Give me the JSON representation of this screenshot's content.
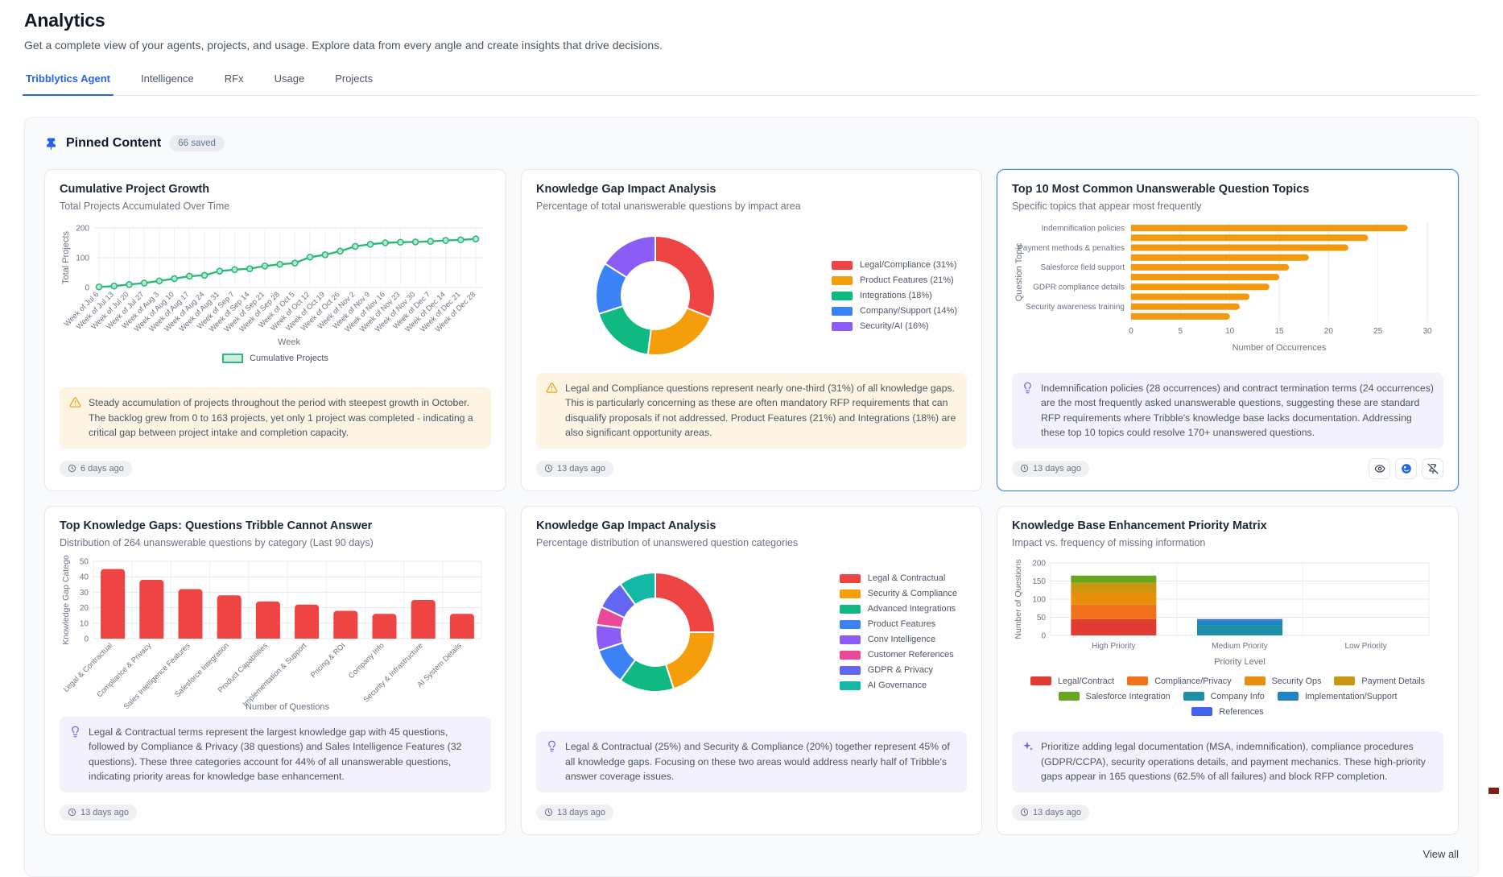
{
  "page": {
    "title": "Analytics",
    "subtitle": "Get a complete view of your agents, projects, and usage. Explore data from every angle and create insights that drive decisions."
  },
  "tabs": [
    {
      "label": "Tribblytics Agent",
      "active": true
    },
    {
      "label": "Intelligence",
      "active": false
    },
    {
      "label": "RFx",
      "active": false
    },
    {
      "label": "Usage",
      "active": false
    },
    {
      "label": "Projects",
      "active": false
    }
  ],
  "pinned": {
    "title": "Pinned Content",
    "badge": "66 saved",
    "view_all": "View all"
  },
  "cards": [
    {
      "title": "Cumulative Project Growth",
      "subtitle": "Total Projects Accumulated Over Time",
      "insight": "Steady accumulation of projects throughout the period with steepest growth in October. The backlog grew from 0 to 163 projects, yet only 1 project was completed - indicating a critical gap between project intake and completion capacity.",
      "timestamp": "6 days ago"
    },
    {
      "title": "Knowledge Gap Impact Analysis",
      "subtitle": "Percentage of total unanswerable questions by impact area",
      "insight": "Legal and Compliance questions represent nearly one-third (31%) of all knowledge gaps. This is particularly concerning as these are often mandatory RFP requirements that can disqualify proposals if not addressed. Product Features (21%) and Integrations (18%) are also significant opportunity areas.",
      "timestamp": "13 days ago"
    },
    {
      "title": "Top 10 Most Common Unanswerable Question Topics",
      "subtitle": "Specific topics that appear most frequently",
      "insight": "Indemnification policies (28 occurrences) and contract termination terms (24 occurrences) are the most frequently asked unanswerable questions, suggesting these are standard RFP requirements where Tribble's knowledge base lacks documentation. Addressing these top 10 topics could resolve 170+ unanswered questions.",
      "timestamp": "13 days ago"
    },
    {
      "title": "Top Knowledge Gaps: Questions Tribble Cannot Answer",
      "subtitle": "Distribution of 264 unanswerable questions by category (Last 90 days)",
      "insight": "Legal & Contractual terms represent the largest knowledge gap with 45 questions, followed by Compliance & Privacy (38 questions) and Sales Intelligence Features (32 questions). These three categories account for 44% of all unanswerable questions, indicating priority areas for knowledge base enhancement.",
      "timestamp": "13 days ago"
    },
    {
      "title": "Knowledge Gap Impact Analysis",
      "subtitle": "Percentage distribution of unanswered question categories",
      "insight": "Legal & Contractual (25%) and Security & Compliance (20%) together represent 45% of all knowledge gaps. Focusing on these two areas would address nearly half of Tribble's answer coverage issues.",
      "timestamp": "13 days ago"
    },
    {
      "title": "Knowledge Base Enhancement Priority Matrix",
      "subtitle": "Impact vs. frequency of missing information",
      "insight": "Prioritize adding legal documentation (MSA, indemnification), compliance procedures (GDPR/CCPA), security operations details, and payment mechanics. These high-priority gaps appear in 165 questions (62.5% of all failures) and block RFP completion.",
      "timestamp": "13 days ago"
    }
  ],
  "chart_data": [
    {
      "type": "line",
      "title": "Cumulative Project Growth",
      "xlabel": "Week",
      "ylabel": "Total Projects",
      "ylim": [
        0,
        200
      ],
      "yticks": [
        0,
        100,
        200
      ],
      "line_color": "#2eb77d",
      "legend": [
        {
          "label": "Cumulative Projects",
          "color": "#2eb77d"
        }
      ],
      "x": [
        "Week of Jul 6",
        "Week of Jul 13",
        "Week of Jul 20",
        "Week of Jul 27",
        "Week of Aug 3",
        "Week of Aug 10",
        "Week of Aug 17",
        "Week of Aug 24",
        "Week of Aug 31",
        "Week of Sep 7",
        "Week of Sep 14",
        "Week of Sep 21",
        "Week of Sep 28",
        "Week of Oct 5",
        "Week of Oct 12",
        "Week of Oct 19",
        "Week of Oct 26",
        "Week of Nov 2",
        "Week of Nov 9",
        "Week of Nov 16",
        "Week of Nov 23",
        "Week of Nov 30",
        "Week of Dec 7",
        "Week of Dec 14",
        "Week of Dec 21",
        "Week of Dec 28"
      ],
      "values": [
        2,
        5,
        10,
        15,
        22,
        30,
        38,
        41,
        55,
        60,
        63,
        72,
        78,
        82,
        102,
        110,
        122,
        138,
        145,
        150,
        152,
        153,
        155,
        158,
        160,
        163
      ]
    },
    {
      "type": "pie",
      "donut": true,
      "legend_position": "right",
      "slices": [
        {
          "label": "Legal/Compliance (31%)",
          "value": 31,
          "color": "#ef4444"
        },
        {
          "label": "Product Features (21%)",
          "value": 21,
          "color": "#f59e0b"
        },
        {
          "label": "Integrations (18%)",
          "value": 18,
          "color": "#10b981"
        },
        {
          "label": "Company/Support (14%)",
          "value": 14,
          "color": "#3b82f6"
        },
        {
          "label": "Security/AI (16%)",
          "value": 16,
          "color": "#8b5cf6"
        }
      ]
    },
    {
      "type": "bar",
      "orientation": "horizontal",
      "xlabel": "Number of Occurrences",
      "ylabel": "Question Topic",
      "xlim": [
        0,
        30
      ],
      "xticks": [
        0,
        5,
        10,
        15,
        20,
        25,
        30
      ],
      "bar_color": "#f2990d",
      "categories": [
        "Indemnification policies",
        "",
        "Payment methods & penalties",
        "",
        "Salesforce field support",
        "",
        "GDPR compliance details",
        "",
        "Security awareness training",
        ""
      ],
      "values": [
        28,
        24,
        22,
        18,
        16,
        15,
        14,
        12,
        11,
        10
      ]
    },
    {
      "type": "bar",
      "orientation": "vertical",
      "xlabel": "Number of Questions",
      "ylabel": "Knowledge Gap Catego",
      "ylim": [
        0,
        50
      ],
      "yticks": [
        0,
        10,
        20,
        30,
        40,
        50
      ],
      "bar_color": "#ee4444",
      "categories": [
        "Legal & Contractual",
        "Compliance & Privacy",
        "Sales Intelligence Features",
        "Salesforce Integration",
        "Product Capabilities",
        "Implementation & Support",
        "Pricing & ROI",
        "Company Info",
        "Security & Infrastructure",
        "AI System Details"
      ],
      "values": [
        45,
        38,
        32,
        28,
        24,
        22,
        18,
        16,
        25,
        16
      ]
    },
    {
      "type": "pie",
      "donut": true,
      "legend_position": "right",
      "slices": [
        {
          "label": "Legal & Contractual",
          "value": 25,
          "color": "#ef4444"
        },
        {
          "label": "Security & Compliance",
          "value": 20,
          "color": "#f59e0b"
        },
        {
          "label": "Advanced Integrations",
          "value": 15,
          "color": "#10b981"
        },
        {
          "label": "Product Features",
          "value": 10,
          "color": "#3b82f6"
        },
        {
          "label": "Conv Intelligence",
          "value": 7,
          "color": "#8b5cf6"
        },
        {
          "label": "Customer References",
          "value": 5,
          "color": "#ec4899"
        },
        {
          "label": "GDPR & Privacy",
          "value": 8,
          "color": "#6366f1"
        },
        {
          "label": "AI Governance",
          "value": 10,
          "color": "#14b8a6"
        }
      ]
    },
    {
      "type": "bar",
      "orientation": "vertical-stacked",
      "xlabel": "Priority Level",
      "ylabel": "Number of Questions",
      "ylim": [
        0,
        200
      ],
      "yticks": [
        0,
        50,
        100,
        150,
        200
      ],
      "categories": [
        "High Priority",
        "Medium Priority",
        "Low Priority"
      ],
      "series": [
        {
          "name": "Legal/Contract",
          "color": "#e03c32",
          "values": [
            45,
            0,
            0
          ]
        },
        {
          "name": "Compliance/Privacy",
          "color": "#f2711c",
          "values": [
            40,
            0,
            0
          ]
        },
        {
          "name": "Security Ops",
          "color": "#e8900c",
          "values": [
            35,
            0,
            0
          ]
        },
        {
          "name": "Payment Details",
          "color": "#c9980f",
          "values": [
            25,
            0,
            0
          ]
        },
        {
          "name": "Salesforce Integration",
          "color": "#68a61d",
          "values": [
            20,
            0,
            0
          ]
        },
        {
          "name": "Company Info",
          "color": "#1d8fa8",
          "values": [
            0,
            28,
            0
          ]
        },
        {
          "name": "Implementation/Support",
          "color": "#1f85c7",
          "values": [
            0,
            14,
            0
          ]
        },
        {
          "name": "References",
          "color": "#4263eb",
          "values": [
            0,
            3,
            0
          ]
        }
      ]
    }
  ]
}
